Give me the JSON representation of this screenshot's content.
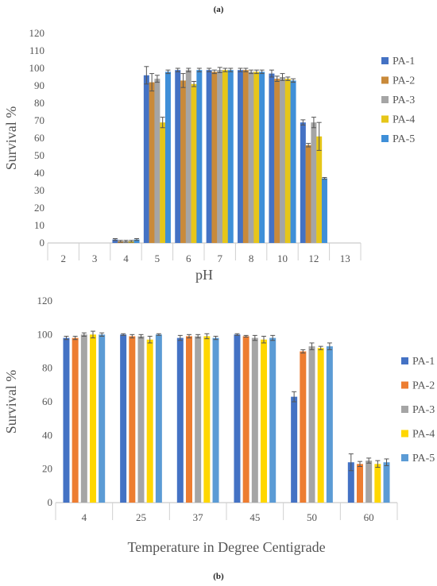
{
  "chart_data": [
    {
      "panel_label": "(a)",
      "type": "bar",
      "xlabel": "pH",
      "ylabel": "Survival %",
      "ylim": [
        0,
        120
      ],
      "yticks": [
        0,
        10,
        20,
        30,
        40,
        50,
        60,
        70,
        80,
        90,
        100,
        110,
        120
      ],
      "grid": false,
      "legend_position": "right",
      "categories": [
        "2",
        "3",
        "4",
        "5",
        "6",
        "7",
        "8",
        "10",
        "12",
        "13"
      ],
      "series": [
        {
          "name": "PA-1",
          "color": "#4472c4",
          "values": [
            0,
            0,
            2,
            96,
            99,
            99,
            99,
            97,
            69,
            0
          ],
          "errors": [
            0,
            0,
            0.5,
            5,
            1,
            1,
            1,
            2,
            1.5,
            0
          ]
        },
        {
          "name": "PA-2",
          "color": "#c98a3a",
          "values": [
            0,
            0,
            1,
            92,
            93,
            98,
            99,
            94,
            56,
            0
          ],
          "errors": [
            0,
            0,
            0.5,
            5,
            4,
            1,
            1,
            1.5,
            1,
            0
          ]
        },
        {
          "name": "PA-3",
          "color": "#a5a5a5",
          "values": [
            0,
            0,
            1,
            94,
            99,
            99,
            98,
            95,
            69,
            0
          ],
          "errors": [
            0,
            0,
            0.5,
            2,
            1,
            1.5,
            1,
            2,
            3,
            0
          ]
        },
        {
          "name": "PA-4",
          "color": "#e6c619",
          "values": [
            0,
            0,
            1,
            69,
            91,
            99,
            98,
            94,
            61,
            0
          ],
          "errors": [
            0,
            0,
            0.5,
            3,
            1.5,
            1,
            1,
            1,
            8,
            0
          ]
        },
        {
          "name": "PA-5",
          "color": "#3f8fd8",
          "values": [
            0,
            0,
            2,
            98,
            99,
            99,
            98,
            93,
            37,
            0
          ],
          "errors": [
            0,
            0,
            0.5,
            1,
            1,
            1,
            1,
            1,
            0.5,
            0
          ]
        }
      ]
    },
    {
      "panel_label": "(b)",
      "type": "bar",
      "xlabel": "Temperature in Degree Centigrade",
      "ylabel": "Survival %",
      "ylim": [
        0,
        120
      ],
      "yticks": [
        0,
        20,
        40,
        60,
        80,
        100,
        120
      ],
      "grid": false,
      "legend_position": "right",
      "categories": [
        "4",
        "25",
        "37",
        "45",
        "50",
        "60"
      ],
      "series": [
        {
          "name": "PA-1",
          "color": "#4472c4",
          "values": [
            98,
            100,
            98,
            100,
            63,
            24
          ],
          "errors": [
            1,
            0.5,
            1.5,
            0.5,
            3,
            5
          ]
        },
        {
          "name": "PA-2",
          "color": "#ed7d31",
          "values": [
            98,
            99,
            99,
            99,
            90,
            23
          ],
          "errors": [
            1,
            1,
            1,
            0.5,
            1,
            1.5
          ]
        },
        {
          "name": "PA-3",
          "color": "#a5a5a5",
          "values": [
            100,
            99,
            99,
            98,
            93,
            25
          ],
          "errors": [
            1,
            1,
            1,
            1.5,
            2,
            1.5
          ]
        },
        {
          "name": "PA-4",
          "color": "#ffd700",
          "values": [
            100,
            97,
            99,
            97,
            92,
            23
          ],
          "errors": [
            2,
            2,
            1.5,
            2,
            1,
            2
          ]
        },
        {
          "name": "PA-5",
          "color": "#5b9bd5",
          "values": [
            100,
            100,
            98,
            98,
            93,
            24
          ],
          "errors": [
            1,
            0.5,
            1,
            1.5,
            2,
            2
          ]
        }
      ]
    }
  ]
}
